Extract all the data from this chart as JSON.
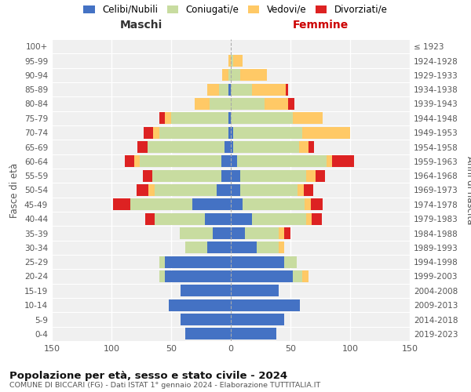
{
  "age_groups": [
    "0-4",
    "5-9",
    "10-14",
    "15-19",
    "20-24",
    "25-29",
    "30-34",
    "35-39",
    "40-44",
    "45-49",
    "50-54",
    "55-59",
    "60-64",
    "65-69",
    "70-74",
    "75-79",
    "80-84",
    "85-89",
    "90-94",
    "95-99",
    "100+"
  ],
  "birth_years": [
    "2019-2023",
    "2014-2018",
    "2009-2013",
    "2004-2008",
    "1999-2003",
    "1994-1998",
    "1989-1993",
    "1984-1988",
    "1979-1983",
    "1974-1978",
    "1969-1973",
    "1964-1968",
    "1959-1963",
    "1954-1958",
    "1949-1953",
    "1944-1948",
    "1939-1943",
    "1934-1938",
    "1929-1933",
    "1924-1928",
    "≤ 1923"
  ],
  "male": {
    "celibi": [
      38,
      42,
      52,
      42,
      55,
      55,
      20,
      15,
      22,
      32,
      12,
      8,
      8,
      5,
      2,
      2,
      0,
      2,
      0,
      0,
      0
    ],
    "coniugati": [
      0,
      0,
      0,
      0,
      5,
      5,
      18,
      28,
      42,
      52,
      52,
      58,
      68,
      65,
      58,
      48,
      18,
      8,
      2,
      0,
      0
    ],
    "vedovi": [
      0,
      0,
      0,
      0,
      0,
      0,
      0,
      0,
      0,
      0,
      5,
      0,
      5,
      0,
      5,
      5,
      12,
      10,
      5,
      2,
      0
    ],
    "divorziati": [
      0,
      0,
      0,
      0,
      0,
      0,
      0,
      0,
      8,
      15,
      10,
      8,
      8,
      8,
      8,
      5,
      0,
      0,
      0,
      0,
      0
    ]
  },
  "female": {
    "nubili": [
      38,
      45,
      58,
      40,
      52,
      45,
      22,
      12,
      18,
      10,
      8,
      8,
      5,
      2,
      2,
      0,
      0,
      0,
      0,
      0,
      0
    ],
    "coniugate": [
      0,
      0,
      0,
      0,
      8,
      10,
      18,
      28,
      45,
      52,
      48,
      55,
      75,
      55,
      58,
      52,
      28,
      18,
      8,
      2,
      0
    ],
    "vedove": [
      0,
      0,
      0,
      0,
      5,
      0,
      5,
      5,
      5,
      5,
      5,
      8,
      5,
      8,
      40,
      25,
      20,
      28,
      22,
      8,
      0
    ],
    "divorziate": [
      0,
      0,
      0,
      0,
      0,
      0,
      0,
      5,
      8,
      10,
      8,
      8,
      18,
      5,
      0,
      0,
      5,
      2,
      0,
      0,
      0
    ]
  },
  "colors": {
    "celibi": "#4472c4",
    "coniugati": "#c8dca0",
    "vedovi": "#ffc966",
    "divorziati": "#dd2222"
  },
  "xlim": 150,
  "title": "Popolazione per età, sesso e stato civile - 2024",
  "subtitle": "COMUNE DI BICCARI (FG) - Dati ISTAT 1° gennaio 2024 - Elaborazione TUTTITALIA.IT",
  "ylabel_left": "Fasce di età",
  "ylabel_right": "Anni di nascita",
  "xlabel_left": "Maschi",
  "xlabel_right": "Femmine",
  "legend_labels": [
    "Celibi/Nubili",
    "Coniugati/e",
    "Vedovi/e",
    "Divorziati/e"
  ],
  "xtick_labels": [
    "150",
    "100",
    "50",
    "0",
    "50",
    "100",
    "150"
  ]
}
